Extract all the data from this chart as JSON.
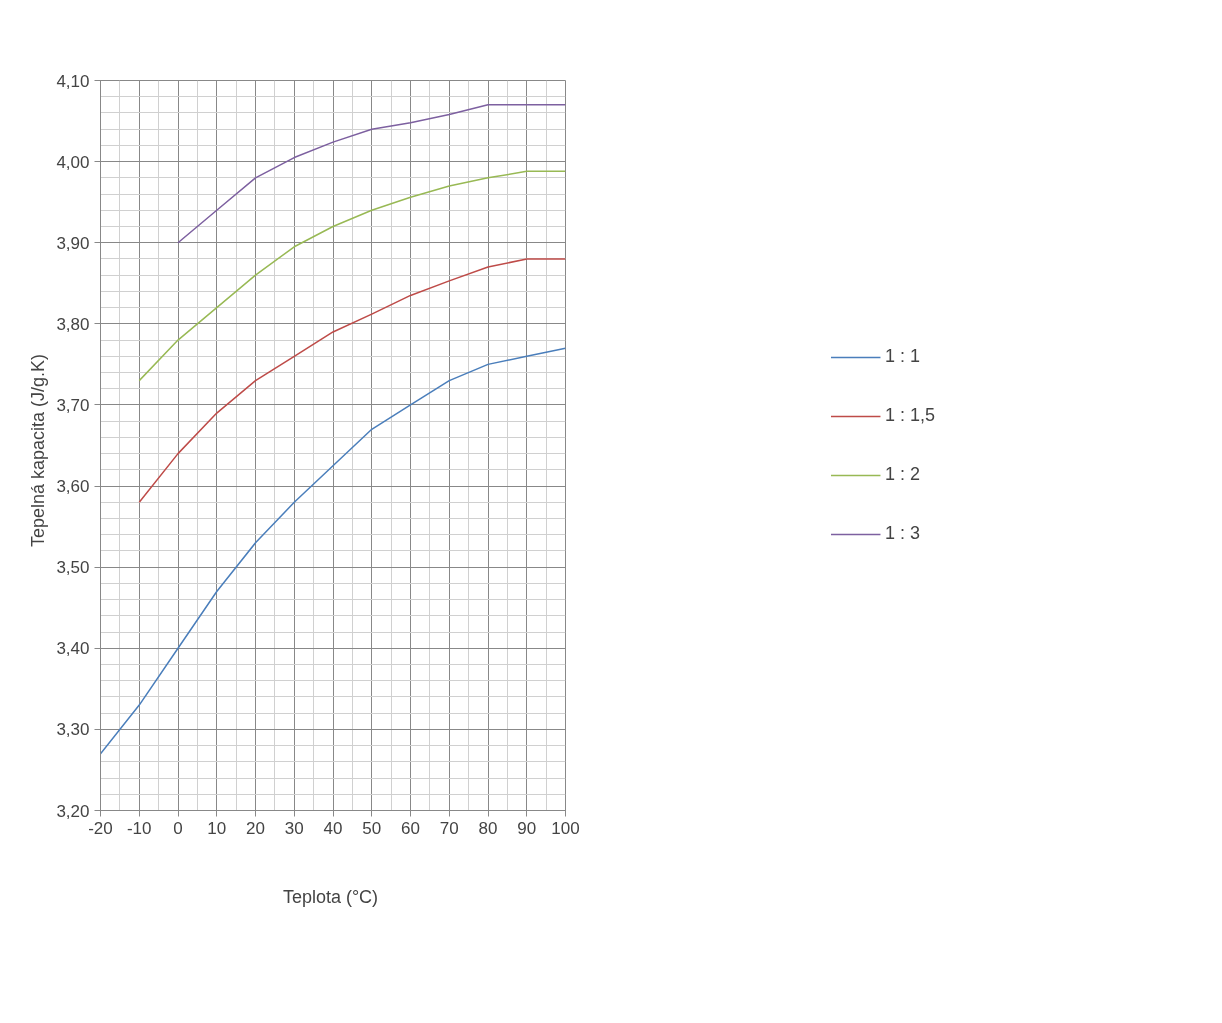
{
  "chart_data": {
    "type": "line",
    "xlabel": "Teplota  (°C)",
    "ylabel": "Tepelná  kapacita  (J/g.K)",
    "x": [
      -20,
      -10,
      0,
      10,
      20,
      30,
      40,
      50,
      60,
      70,
      80,
      90,
      100
    ],
    "series": [
      {
        "name": "1 : 1",
        "color": "#4a7ebb",
        "values": [
          3.27,
          3.33,
          3.4,
          3.47,
          3.53,
          3.58,
          3.625,
          3.67,
          3.7,
          3.73,
          3.75,
          3.76,
          3.77
        ]
      },
      {
        "name": "1 : 1,5",
        "color": "#be4b48",
        "values": [
          null,
          3.58,
          3.64,
          3.69,
          3.73,
          3.76,
          3.79,
          3.812,
          3.835,
          3.853,
          3.87,
          3.88,
          3.88
        ]
      },
      {
        "name": "1 : 2",
        "color": "#98b954",
        "values": [
          null,
          3.73,
          3.78,
          3.82,
          3.86,
          3.895,
          3.92,
          3.94,
          3.956,
          3.97,
          3.98,
          3.988,
          3.988
        ]
      },
      {
        "name": "1 : 3",
        "color": "#7d60a0",
        "values": [
          null,
          null,
          3.9,
          3.94,
          3.98,
          4.005,
          4.024,
          4.04,
          4.048,
          4.058,
          4.07,
          4.07,
          4.07
        ]
      }
    ],
    "xlim": [
      -20,
      100
    ],
    "xticks": [
      -20,
      -10,
      0,
      10,
      20,
      30,
      40,
      50,
      60,
      70,
      80,
      90,
      100
    ],
    "ylim": [
      3.2,
      4.1
    ],
    "yticks": [
      {
        "value": 3.2,
        "label": "3,20"
      },
      {
        "value": 3.3,
        "label": "3,30"
      },
      {
        "value": 3.4,
        "label": "3,40"
      },
      {
        "value": 3.5,
        "label": "3,50"
      },
      {
        "value": 3.6,
        "label": "3,60"
      },
      {
        "value": 3.7,
        "label": "3,70"
      },
      {
        "value": 3.8,
        "label": "3,80"
      },
      {
        "value": 3.9,
        "label": "3,90"
      },
      {
        "value": 4.0,
        "label": "4,00"
      },
      {
        "value": 4.1,
        "label": "4,10"
      }
    ],
    "grid": true,
    "legend": "right",
    "marker": "none",
    "line_style": "solid"
  }
}
